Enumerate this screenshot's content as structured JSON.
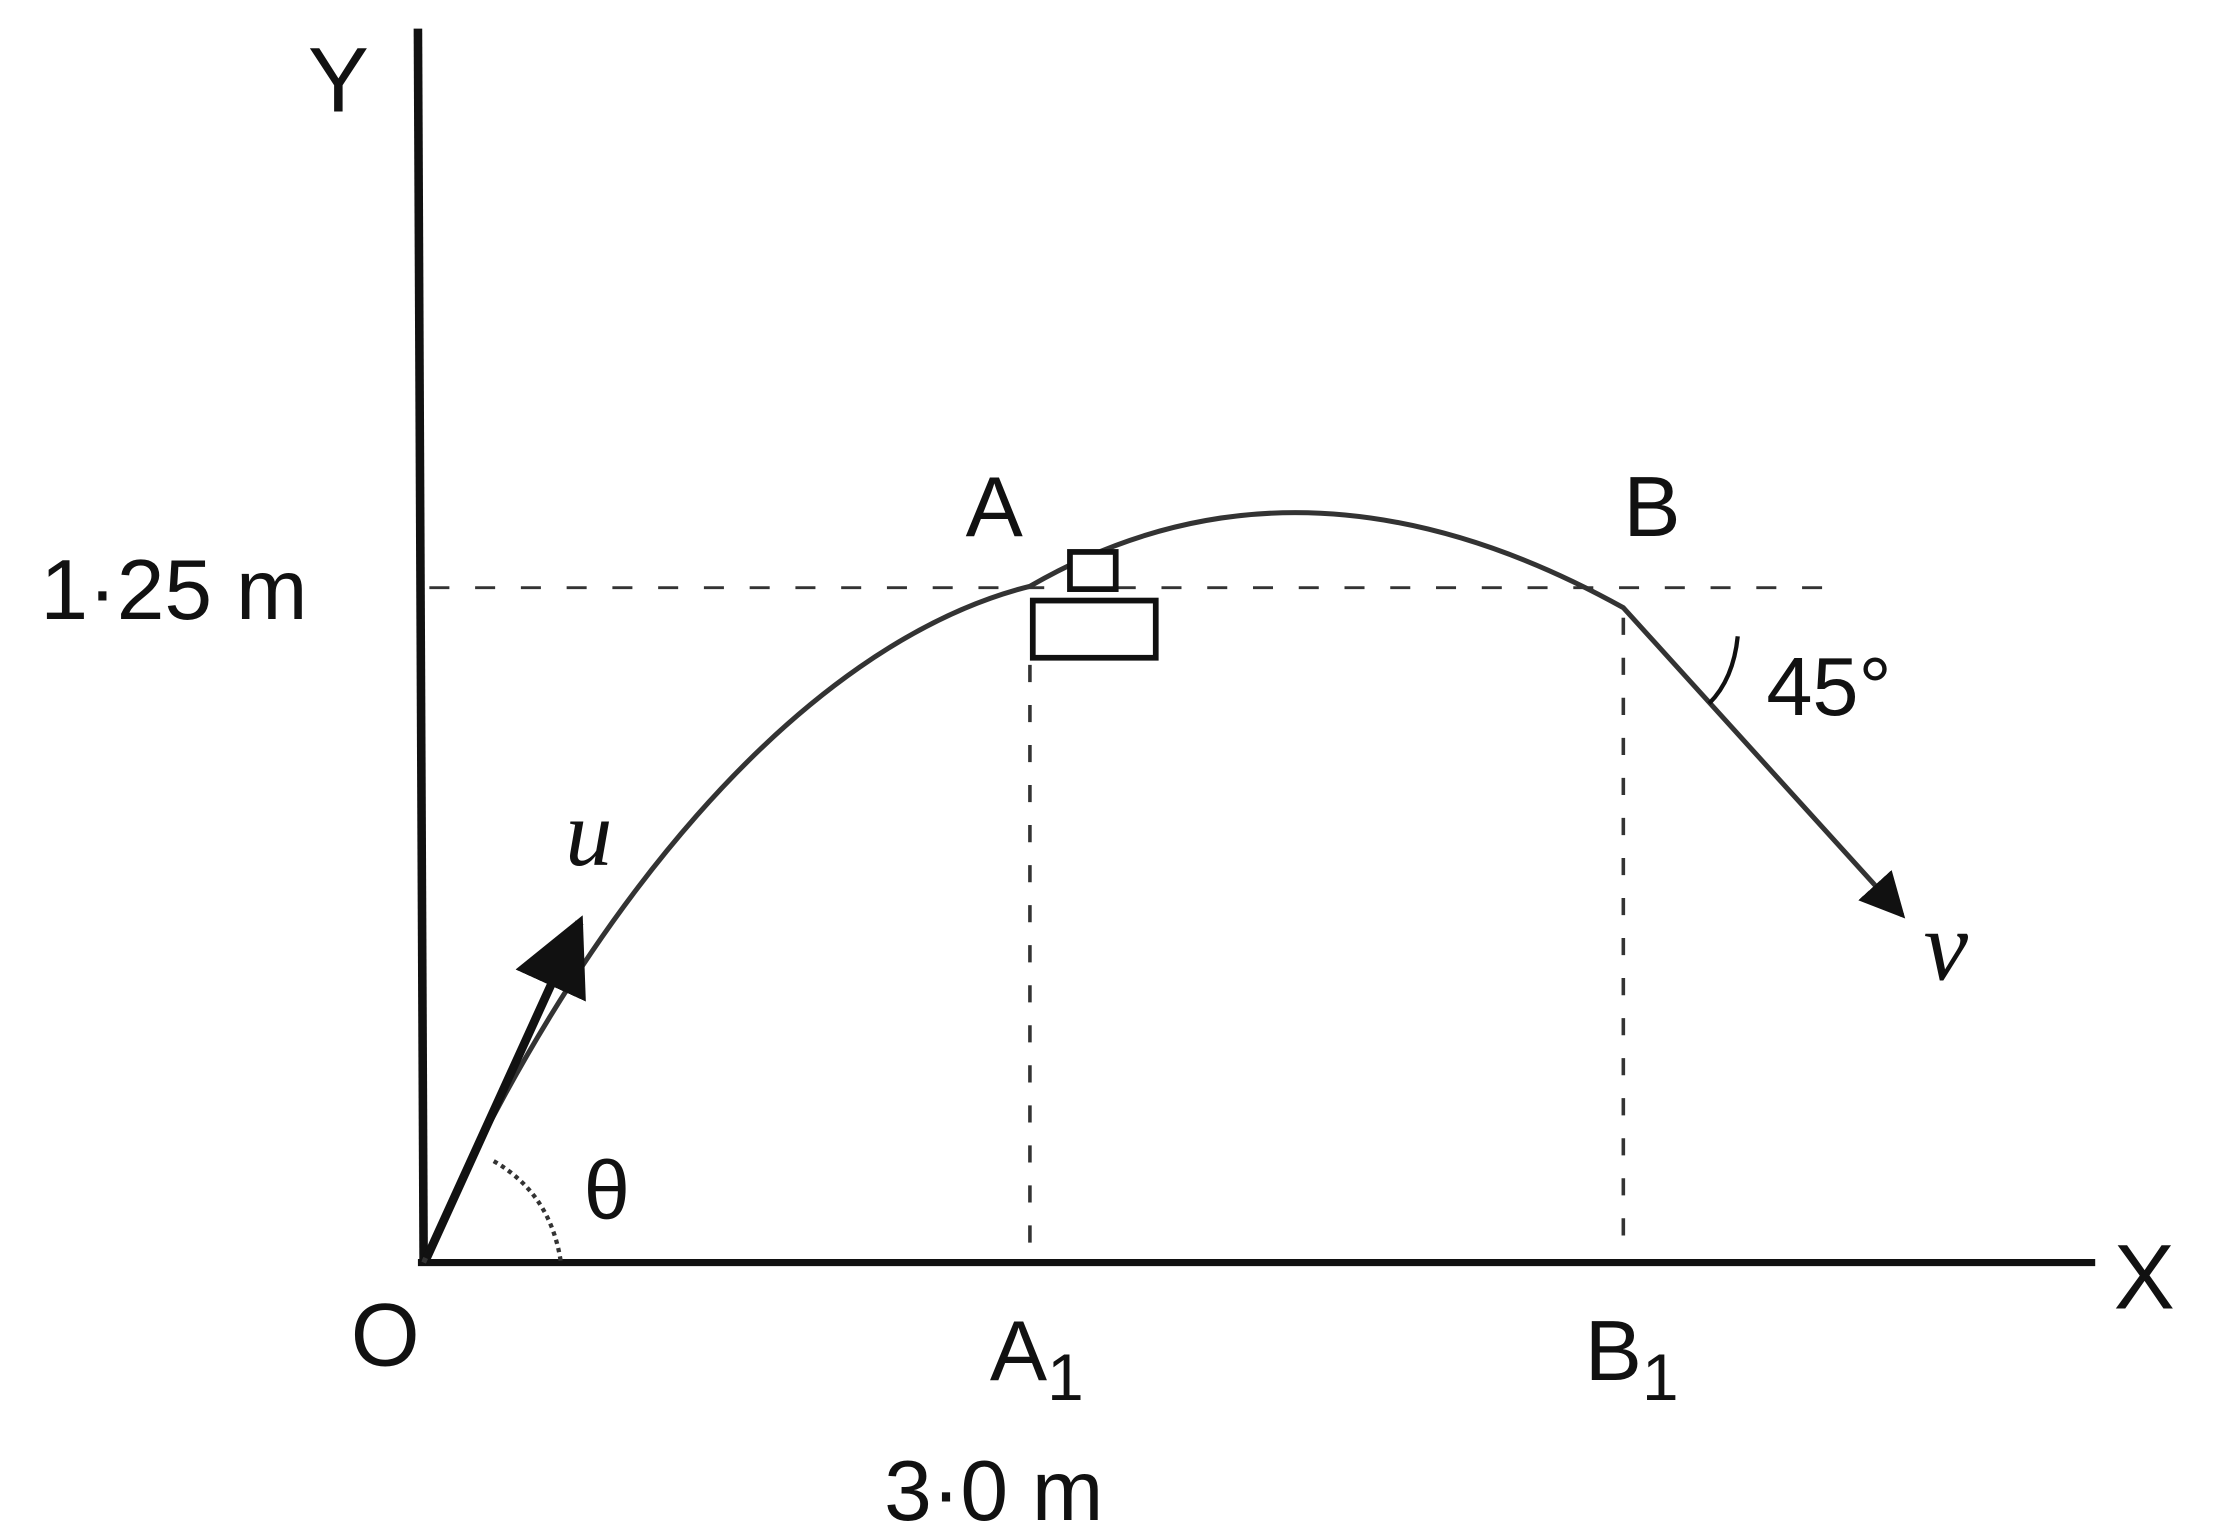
{
  "labels": {
    "y_axis": "Y",
    "x_axis": "X",
    "origin": "O",
    "height": "1·25 m",
    "point_a": "A",
    "point_b": "B",
    "point_a1": "A",
    "point_a1_sub": "1",
    "point_b1": "B",
    "point_b1_sub": "1",
    "distance": "3·0 m",
    "initial_velocity": "u",
    "final_velocity": "v",
    "launch_angle": "θ",
    "final_angle": "45°"
  },
  "colors": {
    "ink": "#111111",
    "curve": "#333333"
  }
}
